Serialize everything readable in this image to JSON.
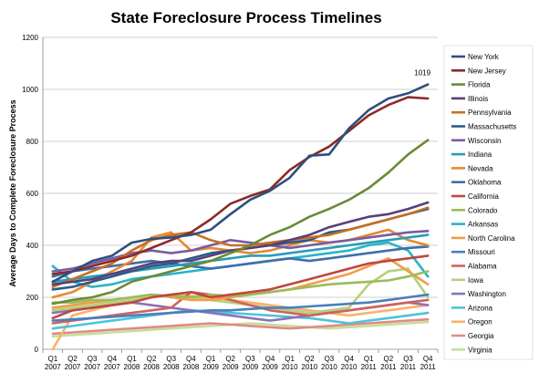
{
  "chart_data": {
    "type": "line",
    "title": "State Foreclosure Process Timelines",
    "ylabel": "Average Days to Complete Foreclosure Process",
    "xlabel": "",
    "ylim": [
      0,
      1200
    ],
    "yticks": [
      0,
      200,
      400,
      600,
      800,
      1000,
      1200
    ],
    "grid": "horizontal",
    "legend_position": "right",
    "categories": [
      [
        "Q1",
        "2007"
      ],
      [
        "Q2",
        "2007"
      ],
      [
        "Q3",
        "2007"
      ],
      [
        "Q4",
        "2007"
      ],
      [
        "Q1",
        "2008"
      ],
      [
        "Q2",
        "2008"
      ],
      [
        "Q3",
        "2008"
      ],
      [
        "Q4",
        "2008"
      ],
      [
        "Q1",
        "2009"
      ],
      [
        "Q2",
        "2009"
      ],
      [
        "Q3",
        "2009"
      ],
      [
        "Q4",
        "2009"
      ],
      [
        "Q1",
        "2010"
      ],
      [
        "Q2",
        "2010"
      ],
      [
        "Q3",
        "2010"
      ],
      [
        "Q4",
        "2010"
      ],
      [
        "Q1",
        "2011"
      ],
      [
        "Q2",
        "2011"
      ],
      [
        "Q3",
        "2011"
      ],
      [
        "Q4",
        "2011"
      ]
    ],
    "annotations": [
      {
        "text": "1019",
        "series": "New York",
        "index": 19
      }
    ],
    "series": [
      {
        "name": "New York",
        "color": "#2e4f7f",
        "values": [
          260,
          300,
          340,
          360,
          410,
          425,
          430,
          440,
          460,
          520,
          575,
          610,
          660,
          745,
          750,
          850,
          920,
          965,
          985,
          1019
        ]
      },
      {
        "name": "New Jersey",
        "color": "#8b2a27",
        "values": [
          290,
          300,
          320,
          340,
          360,
          390,
          420,
          450,
          500,
          560,
          590,
          615,
          690,
          740,
          780,
          840,
          900,
          940,
          970,
          965
        ]
      },
      {
        "name": "Florida",
        "color": "#6a8a35",
        "values": [
          175,
          190,
          200,
          220,
          260,
          280,
          300,
          320,
          340,
          370,
          400,
          440,
          470,
          510,
          540,
          575,
          620,
          680,
          750,
          805
        ]
      },
      {
        "name": "Illinois",
        "color": "#5a3f78",
        "values": [
          250,
          260,
          270,
          290,
          310,
          330,
          340,
          340,
          360,
          380,
          390,
          400,
          420,
          440,
          470,
          490,
          510,
          520,
          540,
          565
        ]
      },
      {
        "name": "Pennsylvania",
        "color": "#c76f22",
        "values": [
          240,
          270,
          300,
          330,
          380,
          420,
          440,
          450,
          420,
          400,
          400,
          410,
          420,
          430,
          440,
          460,
          480,
          500,
          520,
          545
        ]
      },
      {
        "name": "Massachusetts",
        "color": "#2a5c8a",
        "values": [
          230,
          240,
          260,
          280,
          300,
          320,
          330,
          350,
          370,
          380,
          390,
          400,
          410,
          420,
          450,
          460,
          480,
          500,
          520,
          540
        ]
      },
      {
        "name": "Wisconsin",
        "color": "#7a5aa6",
        "values": [
          300,
          310,
          330,
          350,
          370,
          380,
          370,
          380,
          400,
          420,
          410,
          400,
          390,
          400,
          410,
          420,
          430,
          440,
          450,
          455
        ]
      },
      {
        "name": "Indiana",
        "color": "#2a9cb5",
        "values": [
          260,
          270,
          280,
          290,
          300,
          310,
          320,
          330,
          340,
          350,
          360,
          360,
          370,
          380,
          390,
          400,
          410,
          420,
          430,
          440
        ]
      },
      {
        "name": "Nevada",
        "color": "#e8882e",
        "values": [
          200,
          220,
          260,
          300,
          340,
          430,
          450,
          380,
          390,
          380,
          370,
          380,
          400,
          420,
          410,
          420,
          440,
          460,
          420,
          400
        ]
      },
      {
        "name": "Oklahoma",
        "color": "#3e6faa",
        "values": [
          280,
          300,
          310,
          320,
          330,
          340,
          330,
          320,
          310,
          320,
          330,
          340,
          350,
          340,
          350,
          360,
          370,
          380,
          390,
          395
        ]
      },
      {
        "name": "California",
        "color": "#c0463f",
        "values": [
          120,
          150,
          160,
          170,
          180,
          200,
          210,
          220,
          200,
          210,
          220,
          230,
          250,
          270,
          290,
          310,
          330,
          340,
          350,
          360
        ]
      },
      {
        "name": "Colorado",
        "color": "#9bbb59",
        "values": [
          180,
          180,
          190,
          190,
          200,
          210,
          205,
          200,
          210,
          205,
          210,
          220,
          230,
          240,
          250,
          255,
          260,
          265,
          280,
          300
        ]
      },
      {
        "name": "Arkansas",
        "color": "#2bb3c8",
        "values": [
          320,
          260,
          240,
          250,
          270,
          280,
          290,
          300,
          310,
          320,
          330,
          340,
          350,
          360,
          370,
          380,
          400,
          410,
          380,
          280
        ]
      },
      {
        "name": "North Carolina",
        "color": "#f39c45",
        "values": [
          160,
          170,
          180,
          190,
          200,
          210,
          200,
          190,
          190,
          200,
          210,
          220,
          230,
          250,
          270,
          290,
          320,
          350,
          300,
          250
        ]
      },
      {
        "name": "Missouri",
        "color": "#4a7ebf",
        "values": [
          110,
          115,
          120,
          125,
          130,
          135,
          140,
          145,
          150,
          150,
          155,
          160,
          160,
          165,
          170,
          175,
          180,
          190,
          200,
          210
        ]
      },
      {
        "name": "Alabama",
        "color": "#d1625d",
        "values": [
          100,
          110,
          120,
          130,
          140,
          150,
          160,
          220,
          210,
          190,
          170,
          150,
          140,
          130,
          140,
          150,
          160,
          170,
          180,
          190
        ]
      },
      {
        "name": "Iowa",
        "color": "#b3d17a",
        "values": [
          150,
          160,
          170,
          180,
          190,
          200,
          210,
          200,
          190,
          180,
          170,
          160,
          150,
          140,
          150,
          160,
          250,
          300,
          310,
          200
        ]
      },
      {
        "name": "Washington",
        "color": "#8c73b5",
        "values": [
          140,
          150,
          160,
          170,
          180,
          170,
          160,
          150,
          140,
          130,
          120,
          110,
          120,
          130,
          140,
          150,
          160,
          170,
          180,
          170
        ]
      },
      {
        "name": "Arizona",
        "color": "#4fc3d9",
        "values": [
          80,
          90,
          100,
          110,
          120,
          130,
          140,
          150,
          145,
          140,
          135,
          130,
          125,
          120,
          110,
          100,
          110,
          120,
          130,
          140
        ]
      },
      {
        "name": "Oregon",
        "color": "#f7b36b",
        "values": [
          0,
          130,
          150,
          170,
          190,
          200,
          210,
          205,
          200,
          190,
          180,
          170,
          160,
          150,
          140,
          130,
          140,
          150,
          160,
          170
        ]
      },
      {
        "name": "Georgia",
        "color": "#e08a86",
        "values": [
          60,
          65,
          70,
          75,
          80,
          85,
          90,
          95,
          100,
          95,
          90,
          85,
          80,
          85,
          90,
          95,
          100,
          105,
          110,
          115
        ]
      },
      {
        "name": "Virginia",
        "color": "#c6de99",
        "values": [
          50,
          55,
          60,
          65,
          70,
          75,
          80,
          85,
          90,
          95,
          100,
          95,
          90,
          85,
          80,
          85,
          90,
          95,
          100,
          105
        ]
      }
    ]
  }
}
